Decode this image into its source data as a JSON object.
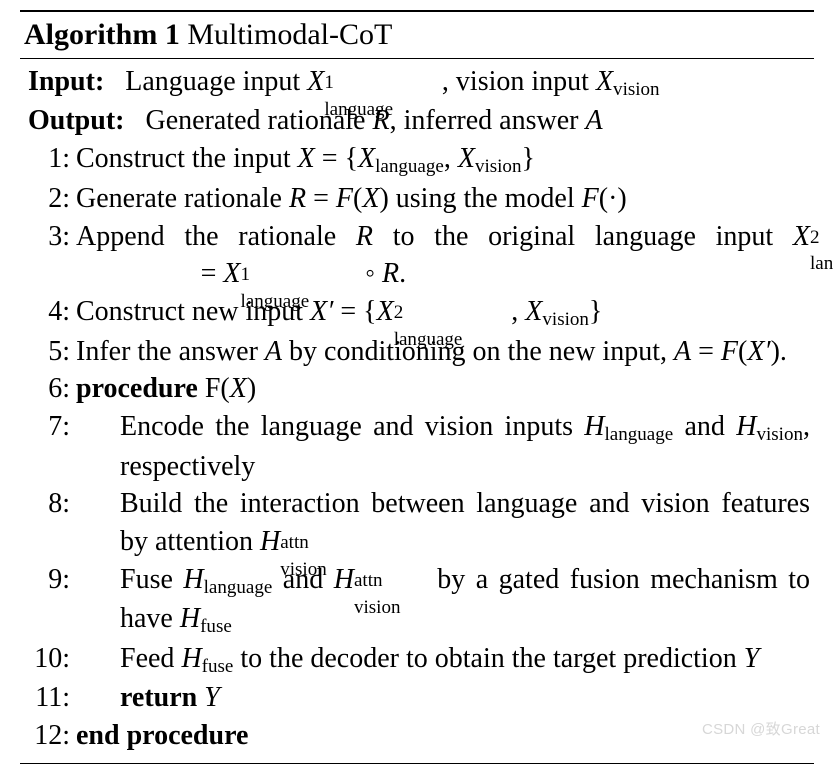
{
  "algorithm": {
    "label": "Algorithm 1",
    "name": "Multimodal-CoT",
    "input_label": "Input:",
    "input_text_a": "Language input ",
    "input_text_b": ", vision input ",
    "output_label": "Output:",
    "output_text_a": "Generated rationale ",
    "output_text_b": ", inferred answer ",
    "sym": {
      "X": "X",
      "Xp": "X′",
      "R": "R",
      "A": "A",
      "F": "F",
      "H": "H",
      "Y": "Y",
      "eq": " = ",
      "lb": "{",
      "rb": "}",
      "comma": ", ",
      "dot": "·",
      "circ": " ◦ ",
      "lp": "(",
      "rp": ")"
    },
    "sub": {
      "language": "language",
      "vision": "vision",
      "fuse": "fuse"
    },
    "sup": {
      "one": "1",
      "two": "2",
      "attn": "attn"
    },
    "steps": {
      "n1": "1:",
      "s1a": "Construct the input ",
      "n2": "2:",
      "s2a": "Generate rationale ",
      "s2b": " using the model ",
      "n3": "3:",
      "s3a": "Append the rationale ",
      "s3b": " to the original language input ",
      "n4": "4:",
      "s4a": "Construct new input ",
      "n5": "5:",
      "s5a": "Infer the answer ",
      "s5b": " by conditioning on the new input, ",
      "n6": "6:",
      "s6a": "procedure",
      "s6b": " F(",
      "s6c": ")",
      "n7": "7:",
      "s7a": "Encode the language and vision inputs ",
      "s7b": " and ",
      "s7c": ", respectively",
      "n8": "8:",
      "s8a": "Build the interaction between language and vision features by attention ",
      "n9": "9:",
      "s9a": "Fuse ",
      "s9b": " and ",
      "s9c": " by a gated fusion mechanism to have ",
      "n10": "10:",
      "s10a": "Feed ",
      "s10b": " to the decoder to obtain the target prediction ",
      "n11": "11:",
      "s11a": "return",
      "n12": "12:",
      "s12a": "end procedure"
    }
  },
  "watermark": "CSDN @致Great"
}
